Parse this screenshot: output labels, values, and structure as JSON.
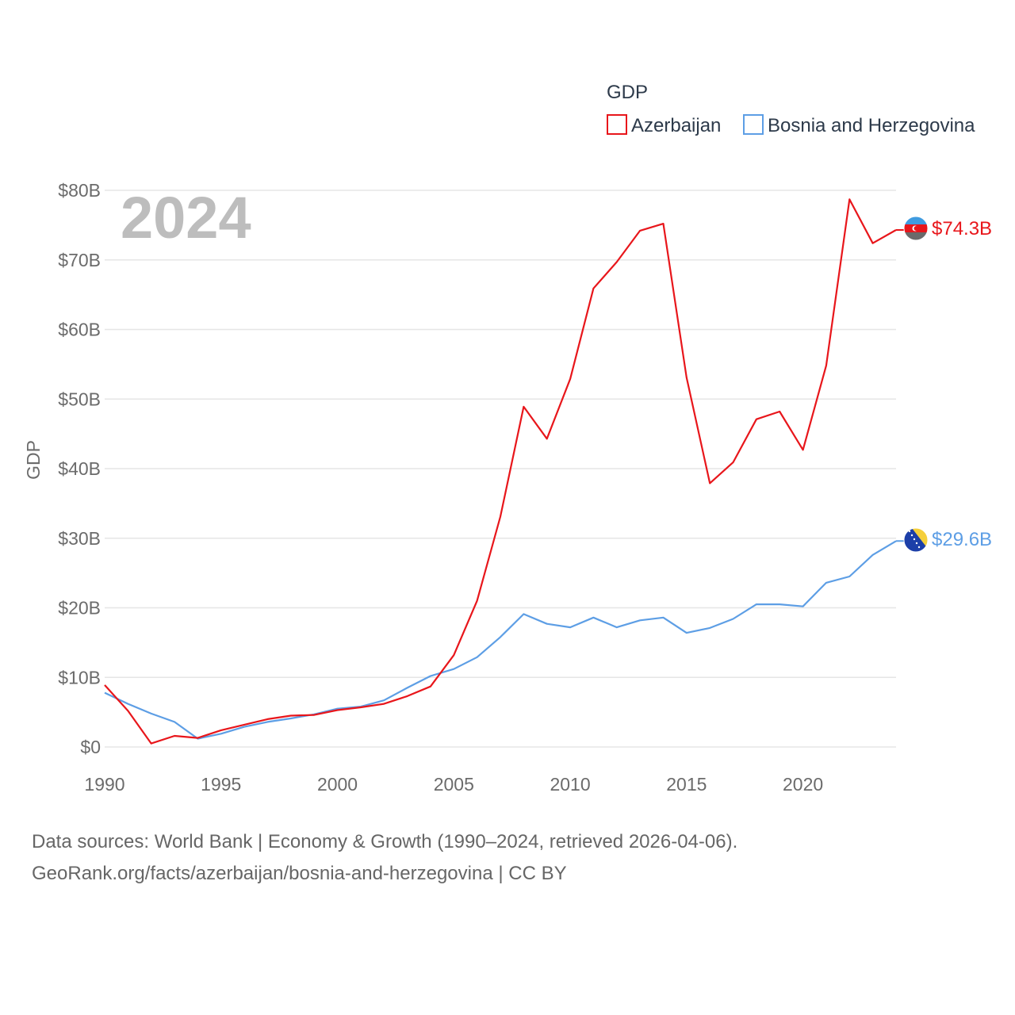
{
  "chart_data": {
    "type": "line",
    "legend_title": "GDP",
    "ylabel": "GDP",
    "year_label": "2024",
    "x": [
      1990,
      1991,
      1992,
      1993,
      1994,
      1995,
      1996,
      1997,
      1998,
      1999,
      2000,
      2001,
      2002,
      2003,
      2004,
      2005,
      2006,
      2007,
      2008,
      2009,
      2010,
      2011,
      2012,
      2013,
      2014,
      2015,
      2016,
      2017,
      2018,
      2019,
      2020,
      2021,
      2022,
      2023,
      2024
    ],
    "xlim": [
      1990,
      2024
    ],
    "ylim": [
      0,
      80
    ],
    "x_ticks": [
      1990,
      1995,
      2000,
      2005,
      2010,
      2015,
      2020
    ],
    "y_ticks": [
      0,
      10,
      20,
      30,
      40,
      50,
      60,
      70,
      80
    ],
    "y_tick_labels": [
      "$0",
      "$10B",
      "$20B",
      "$30B",
      "$40B",
      "$50B",
      "$60B",
      "$70B",
      "$80B"
    ],
    "series": [
      {
        "name": "Azerbaijan",
        "color": "#e8161b",
        "end_label": "$74.3B",
        "flag_icon": "azerbaijan-flag-icon",
        "values": [
          8.9,
          5.2,
          0.5,
          1.6,
          1.3,
          2.4,
          3.2,
          4.0,
          4.5,
          4.6,
          5.3,
          5.7,
          6.2,
          7.3,
          8.7,
          13.2,
          21.0,
          33.1,
          48.9,
          44.3,
          52.9,
          65.9,
          69.7,
          74.2,
          75.2,
          53.1,
          37.9,
          40.9,
          47.1,
          48.2,
          42.7,
          54.8,
          78.7,
          72.4,
          74.3
        ]
      },
      {
        "name": "Bosnia and Herzegovina",
        "color": "#5d9ee5",
        "end_label": "$29.6B",
        "flag_icon": "bosnia-flag-icon",
        "values": [
          7.8,
          6.2,
          4.8,
          3.6,
          1.2,
          1.9,
          2.9,
          3.6,
          4.1,
          4.7,
          5.5,
          5.8,
          6.7,
          8.5,
          10.2,
          11.2,
          12.9,
          15.8,
          19.1,
          17.7,
          17.2,
          18.6,
          17.2,
          18.2,
          18.6,
          16.4,
          17.1,
          18.4,
          20.5,
          20.5,
          20.2,
          23.6,
          24.5,
          27.6,
          29.6
        ]
      }
    ]
  },
  "footer": {
    "line1": "Data sources: World Bank | Economy & Growth (1990–2024, retrieved 2026-04-06).",
    "line2": "GeoRank.org/facts/azerbaijan/bosnia-and-herzegovina | CC BY"
  }
}
